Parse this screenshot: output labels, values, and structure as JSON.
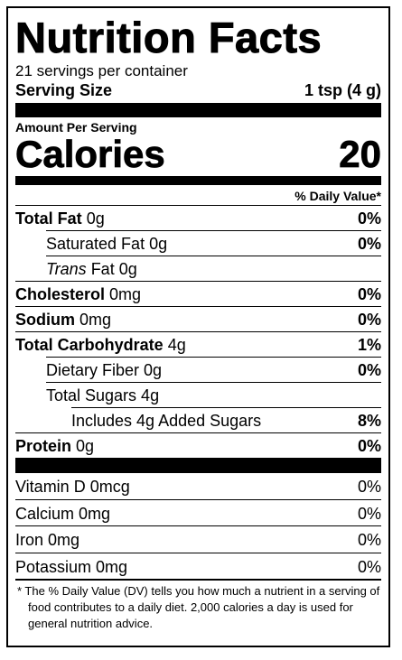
{
  "title": "Nutrition Facts",
  "servings_per_container": "21 servings per container",
  "serving_size_label": "Serving Size",
  "serving_size_value": "1 tsp (4 g)",
  "amount_per_serving": "Amount Per Serving",
  "calories_label": "Calories",
  "calories_value": "20",
  "daily_value_header": "% Daily Value*",
  "nutrients": {
    "total_fat": {
      "label": "Total Fat",
      "amount": "0g",
      "pct": "0%"
    },
    "saturated_fat": {
      "label": "Saturated Fat 0g",
      "pct": "0%"
    },
    "trans_fat": {
      "label_italic": "Trans",
      "label_rest": " Fat 0g"
    },
    "cholesterol": {
      "label": "Cholesterol",
      "amount": "0mg",
      "pct": "0%"
    },
    "sodium": {
      "label": "Sodium",
      "amount": "0mg",
      "pct": "0%"
    },
    "total_carbohydrate": {
      "label": "Total Carbohydrate",
      "amount": "4g",
      "pct": "1%"
    },
    "dietary_fiber": {
      "label": "Dietary Fiber 0g",
      "pct": "0%"
    },
    "total_sugars": {
      "label": "Total Sugars 4g"
    },
    "added_sugars": {
      "label": "Includes 4g Added Sugars",
      "pct": "8%"
    },
    "protein": {
      "label": "Protein",
      "amount": "0g",
      "pct": "0%"
    }
  },
  "vitamins": [
    {
      "label": "Vitamin D 0mcg",
      "pct": "0%"
    },
    {
      "label": "Calcium 0mg",
      "pct": "0%"
    },
    {
      "label": "Iron 0mg",
      "pct": "0%"
    },
    {
      "label": "Potassium 0mg",
      "pct": "0%"
    }
  ],
  "footnote": "* The % Daily Value (DV) tells you how much a nutrient in a serving of food contributes to a daily diet. 2,000 calories a day is used for general nutrition advice."
}
